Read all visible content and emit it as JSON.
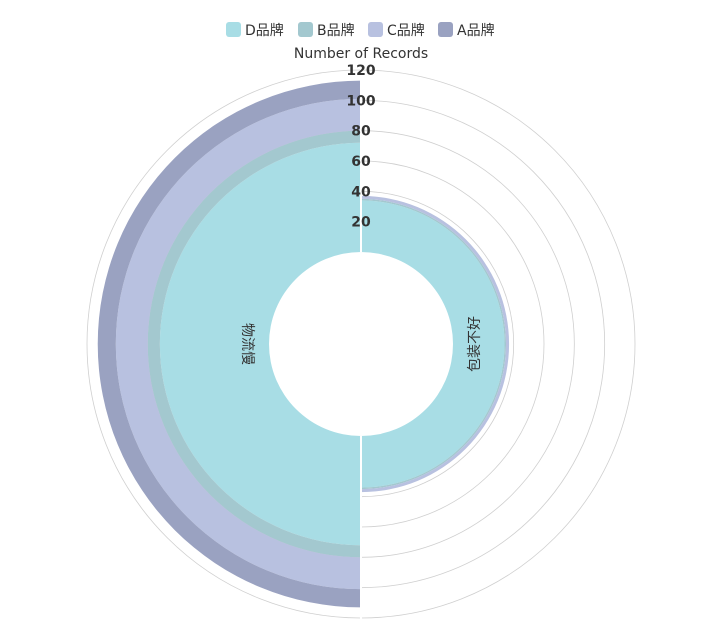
{
  "chart_data": {
    "type": "radial-stacked-bar",
    "title": "Number of Records",
    "categories": [
      "物流慢",
      "包装不好"
    ],
    "series": [
      {
        "name": "D品牌",
        "color": "#a8dde5",
        "values": [
          72,
          34
        ]
      },
      {
        "name": "B品牌",
        "color": "#a3c8cf",
        "values": [
          8,
          1
        ]
      },
      {
        "name": "C品牌",
        "color": "#b8c1e0",
        "values": [
          21,
          2
        ]
      },
      {
        "name": "A品牌",
        "color": "#9aa2c1",
        "values": [
          12,
          0
        ]
      }
    ],
    "legend_order": [
      "D品牌",
      "B品牌",
      "C品牌",
      "A品牌"
    ],
    "radial_ticks": [
      20,
      40,
      60,
      80,
      100,
      120
    ],
    "radial_range": [
      0,
      120
    ],
    "legend_position": "top-center",
    "grid": true
  }
}
